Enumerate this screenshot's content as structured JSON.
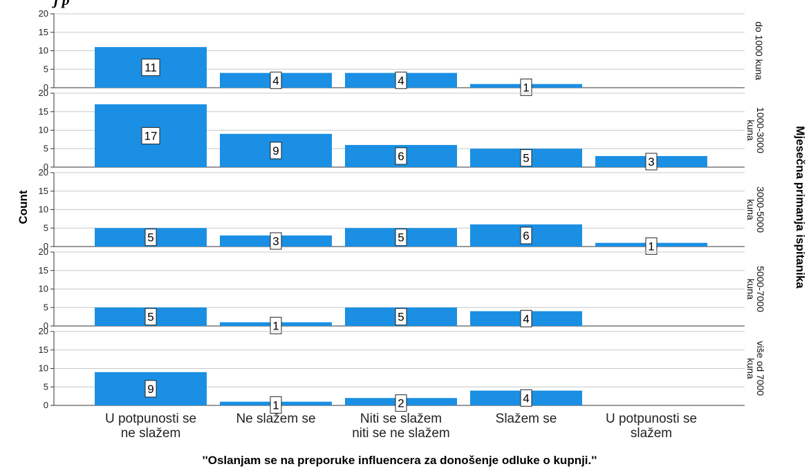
{
  "chart_data": {
    "type": "bar",
    "title_fragment": "j p",
    "xlabel": "''Oslanjam se na preporuke influencera za donošenje odluke o kupnji.''",
    "ylabel": "Count",
    "panel_axis_label": "Mjesečna primanja ispitanika",
    "categories": [
      [
        "U potpunosti se",
        "ne slažem"
      ],
      [
        "Ne slažem se"
      ],
      [
        "Niti se slažem",
        "niti se ne slažem"
      ],
      [
        "Slažem se"
      ],
      [
        "U potpunosti se",
        "slažem"
      ]
    ],
    "ylim": [
      0,
      20
    ],
    "yticks": [
      0,
      5,
      10,
      15,
      20
    ],
    "grid": true,
    "bar_color": "#1a8fe3",
    "panels": [
      {
        "name": [
          "do 1000 kuna"
        ],
        "values": [
          11,
          4,
          4,
          1,
          null
        ]
      },
      {
        "name": [
          "1000-3000",
          "kuna"
        ],
        "values": [
          17,
          9,
          6,
          5,
          3
        ]
      },
      {
        "name": [
          "3000-5000",
          "kuna"
        ],
        "values": [
          5,
          3,
          5,
          6,
          1
        ]
      },
      {
        "name": [
          "5000-7000",
          "kuna"
        ],
        "values": [
          5,
          1,
          5,
          4,
          null
        ]
      },
      {
        "name": [
          "više od 7000",
          "kuna"
        ],
        "values": [
          9,
          1,
          2,
          4,
          null
        ]
      }
    ]
  }
}
